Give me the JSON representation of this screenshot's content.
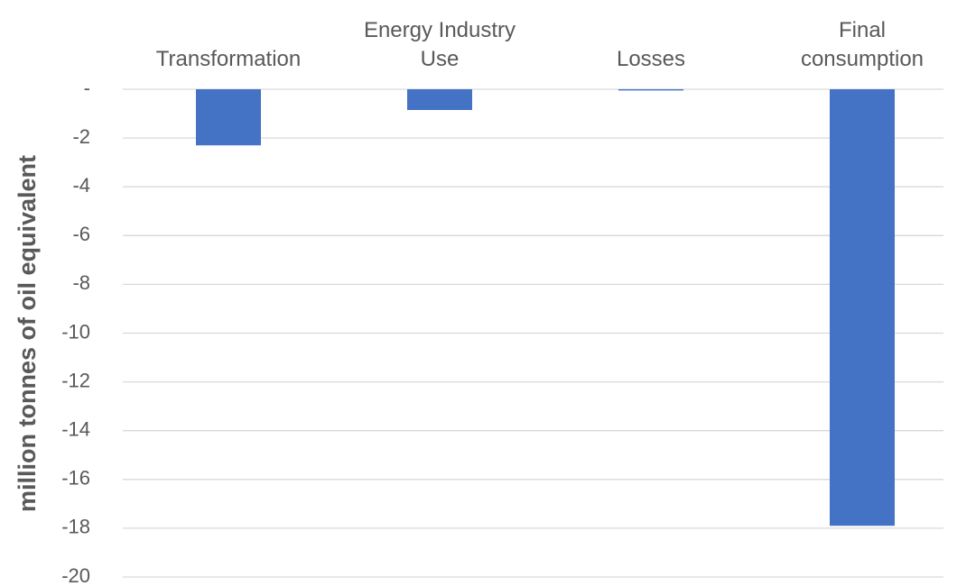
{
  "chart_data": {
    "type": "bar",
    "y_label": "million tonnes of oil equivalent",
    "categories": [
      "Transformation",
      "Energy Industry Use",
      "Losses",
      "Final consumption"
    ],
    "values": [
      -2.3,
      -0.85,
      -0.05,
      -17.9
    ],
    "color": "#4472c4",
    "ylim": [
      -20,
      0
    ],
    "yticks": [
      {
        "value": 0,
        "label": "-"
      },
      -2,
      -4,
      -6,
      -8,
      -10,
      -12,
      -14,
      -16,
      -18,
      -20
    ],
    "grid": true
  }
}
